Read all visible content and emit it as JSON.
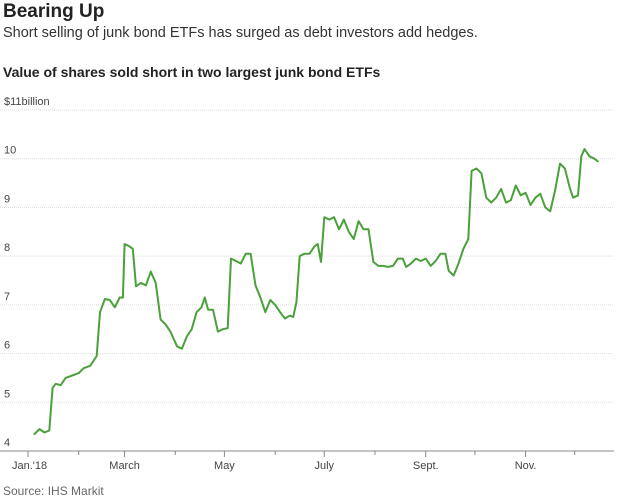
{
  "headline": "Bearing Up",
  "dek": "Short selling of junk bond ETFs has surged as debt investors add hedges.",
  "source": "Source: IHS Markit",
  "colors": {
    "line": "#4aa03a",
    "grid": "#dddddd",
    "axis": "#888888"
  },
  "chart_data": {
    "type": "line",
    "title": "Value of shares sold short in two largest junk bond ETFs",
    "ylabel": "",
    "xlabel": "",
    "ylim": [
      4,
      11
    ],
    "y_ticks": [
      {
        "value": 11,
        "label": "$11billion"
      },
      {
        "value": 10,
        "label": "10"
      },
      {
        "value": 9,
        "label": "9"
      },
      {
        "value": 8,
        "label": "8"
      },
      {
        "value": 7,
        "label": "7"
      },
      {
        "value": 6,
        "label": "6"
      },
      {
        "value": 5,
        "label": "5"
      },
      {
        "value": 4,
        "label": "4"
      }
    ],
    "x_tick_labels": [
      {
        "date": "2018-01-01",
        "label": "Jan.'18"
      },
      {
        "date": "2018-03-01",
        "label": "March"
      },
      {
        "date": "2018-05-01",
        "label": "May"
      },
      {
        "date": "2018-07-01",
        "label": "July"
      },
      {
        "date": "2018-09-01",
        "label": "Sept."
      },
      {
        "date": "2018-11-01",
        "label": "Nov."
      }
    ],
    "x_minor_ticks": [
      "2018-02-01",
      "2018-04-01",
      "2018-06-01",
      "2018-08-01",
      "2018-10-01",
      "2018-12-01"
    ],
    "grid": true,
    "series": [
      {
        "points": [
          [
            "2018-01-05",
            4.35
          ],
          [
            "2018-01-08",
            4.45
          ],
          [
            "2018-01-11",
            4.38
          ],
          [
            "2018-01-14",
            4.42
          ],
          [
            "2018-01-16",
            5.3
          ],
          [
            "2018-01-18",
            5.38
          ],
          [
            "2018-01-21",
            5.35
          ],
          [
            "2018-01-24",
            5.5
          ],
          [
            "2018-01-28",
            5.55
          ],
          [
            "2018-02-01",
            5.6
          ],
          [
            "2018-02-04",
            5.7
          ],
          [
            "2018-02-08",
            5.75
          ],
          [
            "2018-02-12",
            5.95
          ],
          [
            "2018-02-14",
            6.85
          ],
          [
            "2018-02-17",
            7.12
          ],
          [
            "2018-02-20",
            7.1
          ],
          [
            "2018-02-23",
            6.95
          ],
          [
            "2018-02-26",
            7.15
          ],
          [
            "2018-02-28",
            7.15
          ],
          [
            "2018-03-01",
            8.25
          ],
          [
            "2018-03-04",
            8.2
          ],
          [
            "2018-03-06",
            8.15
          ],
          [
            "2018-03-08",
            7.38
          ],
          [
            "2018-03-11",
            7.45
          ],
          [
            "2018-03-14",
            7.4
          ],
          [
            "2018-03-17",
            7.68
          ],
          [
            "2018-03-20",
            7.45
          ],
          [
            "2018-03-23",
            6.7
          ],
          [
            "2018-03-26",
            6.6
          ],
          [
            "2018-03-29",
            6.45
          ],
          [
            "2018-04-02",
            6.15
          ],
          [
            "2018-04-05",
            6.1
          ],
          [
            "2018-04-08",
            6.35
          ],
          [
            "2018-04-11",
            6.5
          ],
          [
            "2018-04-14",
            6.85
          ],
          [
            "2018-04-17",
            6.95
          ],
          [
            "2018-04-19",
            7.15
          ],
          [
            "2018-04-21",
            6.9
          ],
          [
            "2018-04-24",
            6.9
          ],
          [
            "2018-04-27",
            6.45
          ],
          [
            "2018-04-30",
            6.5
          ],
          [
            "2018-05-03",
            6.52
          ],
          [
            "2018-05-05",
            7.95
          ],
          [
            "2018-05-08",
            7.9
          ],
          [
            "2018-05-11",
            7.85
          ],
          [
            "2018-05-14",
            8.05
          ],
          [
            "2018-05-17",
            8.05
          ],
          [
            "2018-05-20",
            7.4
          ],
          [
            "2018-05-23",
            7.15
          ],
          [
            "2018-05-26",
            6.85
          ],
          [
            "2018-05-29",
            7.1
          ],
          [
            "2018-06-01",
            7.0
          ],
          [
            "2018-06-04",
            6.85
          ],
          [
            "2018-06-07",
            6.72
          ],
          [
            "2018-06-10",
            6.78
          ],
          [
            "2018-06-12",
            6.75
          ],
          [
            "2018-06-14",
            7.05
          ],
          [
            "2018-06-16",
            8.0
          ],
          [
            "2018-06-19",
            8.05
          ],
          [
            "2018-06-22",
            8.05
          ],
          [
            "2018-06-25",
            8.2
          ],
          [
            "2018-06-27",
            8.25
          ],
          [
            "2018-06-29",
            7.88
          ],
          [
            "2018-07-01",
            8.8
          ],
          [
            "2018-07-04",
            8.75
          ],
          [
            "2018-07-07",
            8.8
          ],
          [
            "2018-07-10",
            8.55
          ],
          [
            "2018-07-13",
            8.75
          ],
          [
            "2018-07-16",
            8.5
          ],
          [
            "2018-07-19",
            8.35
          ],
          [
            "2018-07-22",
            8.72
          ],
          [
            "2018-07-25",
            8.55
          ],
          [
            "2018-07-28",
            8.55
          ],
          [
            "2018-07-31",
            7.88
          ],
          [
            "2018-08-03",
            7.8
          ],
          [
            "2018-08-06",
            7.8
          ],
          [
            "2018-08-09",
            7.78
          ],
          [
            "2018-08-12",
            7.8
          ],
          [
            "2018-08-15",
            7.95
          ],
          [
            "2018-08-18",
            7.95
          ],
          [
            "2018-08-20",
            7.78
          ],
          [
            "2018-08-23",
            7.85
          ],
          [
            "2018-08-26",
            7.95
          ],
          [
            "2018-08-29",
            7.9
          ],
          [
            "2018-09-01",
            7.95
          ],
          [
            "2018-09-04",
            7.8
          ],
          [
            "2018-09-07",
            7.9
          ],
          [
            "2018-09-10",
            8.05
          ],
          [
            "2018-09-13",
            8.05
          ],
          [
            "2018-09-15",
            7.7
          ],
          [
            "2018-09-18",
            7.6
          ],
          [
            "2018-09-21",
            7.85
          ],
          [
            "2018-09-24",
            8.15
          ],
          [
            "2018-09-27",
            8.35
          ],
          [
            "2018-09-29",
            9.75
          ],
          [
            "2018-10-02",
            9.8
          ],
          [
            "2018-10-05",
            9.7
          ],
          [
            "2018-10-08",
            9.2
          ],
          [
            "2018-10-11",
            9.1
          ],
          [
            "2018-10-14",
            9.2
          ],
          [
            "2018-10-17",
            9.38
          ],
          [
            "2018-10-20",
            9.1
          ],
          [
            "2018-10-23",
            9.15
          ],
          [
            "2018-10-26",
            9.45
          ],
          [
            "2018-10-29",
            9.25
          ],
          [
            "2018-11-01",
            9.3
          ],
          [
            "2018-11-04",
            9.05
          ],
          [
            "2018-11-07",
            9.2
          ],
          [
            "2018-11-10",
            9.28
          ],
          [
            "2018-11-13",
            9.0
          ],
          [
            "2018-11-16",
            8.92
          ],
          [
            "2018-11-19",
            9.35
          ],
          [
            "2018-11-22",
            9.9
          ],
          [
            "2018-11-25",
            9.8
          ],
          [
            "2018-11-28",
            9.4
          ],
          [
            "2018-11-30",
            9.2
          ],
          [
            "2018-12-03",
            9.25
          ],
          [
            "2018-12-05",
            10.05
          ],
          [
            "2018-12-07",
            10.2
          ],
          [
            "2018-12-10",
            10.05
          ],
          [
            "2018-12-13",
            10.0
          ],
          [
            "2018-12-15",
            9.95
          ]
        ]
      }
    ]
  }
}
